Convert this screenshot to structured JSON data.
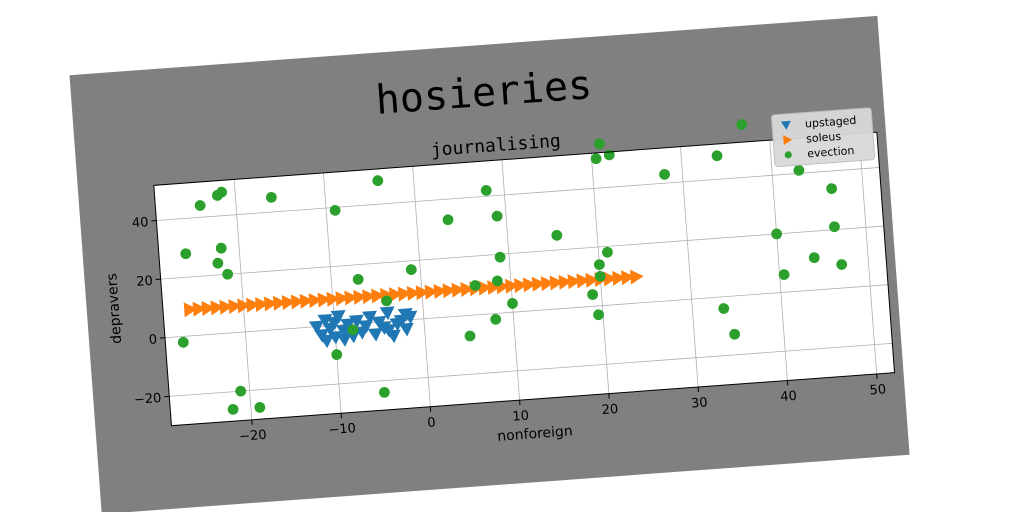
{
  "chart_data": {
    "type": "scatter",
    "suptitle": "hosieries",
    "title": "journalising",
    "xlabel": "nonforeign",
    "ylabel": "depravers",
    "xlim": [
      -29,
      52
    ],
    "ylim": [
      -30,
      52
    ],
    "x_ticks": [
      -20,
      -10,
      0,
      10,
      20,
      30,
      40,
      50
    ],
    "y_ticks": [
      -20,
      0,
      20,
      40
    ],
    "x_tick_labels": [
      "−20",
      "−10",
      "0",
      "10",
      "20",
      "30",
      "40",
      "50"
    ],
    "y_tick_labels": [
      "−20",
      "0",
      "20",
      "40"
    ],
    "grid": true,
    "legend_position": "top-right",
    "series": [
      {
        "name": "upstaged",
        "marker": "triangle-down",
        "color": "#1f77b4",
        "points": [
          [
            -12,
            0
          ],
          [
            -11.5,
            -3
          ],
          [
            -11,
            -5
          ],
          [
            -10.5,
            -1
          ],
          [
            -10,
            1
          ],
          [
            -10,
            -4
          ],
          [
            -9.5,
            3
          ],
          [
            -9,
            -2
          ],
          [
            -8.5,
            0
          ],
          [
            -8,
            -4
          ],
          [
            -7.5,
            1
          ],
          [
            -7,
            -3
          ],
          [
            -6.5,
            -1
          ],
          [
            -6,
            2
          ],
          [
            -5.5,
            -4
          ],
          [
            -5,
            0
          ],
          [
            -4.5,
            -2
          ],
          [
            -4,
            3
          ],
          [
            -3.5,
            -5
          ],
          [
            -3,
            -1
          ],
          [
            -2.5,
            0
          ],
          [
            -2,
            -3
          ],
          [
            -1.5,
            1
          ],
          [
            -11,
            2
          ],
          [
            -9,
            -5
          ],
          [
            -4,
            -3
          ],
          [
            -2,
            2
          ]
        ]
      },
      {
        "name": "soleus",
        "marker": "triangle-right",
        "color": "#ff7f0e",
        "points": [
          [
            -26,
            9
          ],
          [
            -25,
            9
          ],
          [
            -24,
            9
          ],
          [
            -23,
            9
          ],
          [
            -22,
            9
          ],
          [
            -21,
            9
          ],
          [
            -20,
            9
          ],
          [
            -19,
            9
          ],
          [
            -18,
            9
          ],
          [
            -17,
            9
          ],
          [
            -16,
            9
          ],
          [
            -15,
            9
          ],
          [
            -14,
            9
          ],
          [
            -13,
            9
          ],
          [
            -12,
            9
          ],
          [
            -11,
            9
          ],
          [
            -10,
            9
          ],
          [
            -9,
            9
          ],
          [
            -8,
            9
          ],
          [
            -7,
            9
          ],
          [
            -6,
            9
          ],
          [
            -5,
            9
          ],
          [
            -4,
            9
          ],
          [
            -3,
            9
          ],
          [
            -2,
            9
          ],
          [
            -1,
            9
          ],
          [
            0,
            9
          ],
          [
            1,
            9
          ],
          [
            2,
            9
          ],
          [
            3,
            9
          ],
          [
            4,
            9
          ],
          [
            5,
            9
          ],
          [
            6,
            9
          ],
          [
            7,
            9
          ],
          [
            8,
            9
          ],
          [
            9,
            9
          ],
          [
            10,
            9
          ],
          [
            11,
            9
          ],
          [
            12,
            9
          ],
          [
            13,
            9
          ],
          [
            14,
            9
          ],
          [
            15,
            9
          ],
          [
            16,
            9
          ],
          [
            17,
            9
          ],
          [
            18,
            9
          ],
          [
            19,
            9
          ],
          [
            20,
            9
          ],
          [
            21,
            9
          ],
          [
            22,
            9
          ],
          [
            23,
            9
          ],
          [
            24,
            9
          ]
        ]
      },
      {
        "name": "evection",
        "marker": "circle",
        "color": "#2ca02c",
        "points": [
          [
            -26,
            28
          ],
          [
            -27,
            -2
          ],
          [
            -24,
            44
          ],
          [
            -22,
            47
          ],
          [
            -21.5,
            48
          ],
          [
            -22,
            29
          ],
          [
            -22.5,
            24
          ],
          [
            -21.5,
            20
          ],
          [
            -16,
            45
          ],
          [
            -9,
            39
          ],
          [
            -4,
            48
          ],
          [
            -21,
            -20
          ],
          [
            -22,
            -26
          ],
          [
            -19,
            -26
          ],
          [
            -5,
            -24
          ],
          [
            -1,
            17
          ],
          [
            -7,
            15
          ],
          [
            -10,
            -10
          ],
          [
            -8,
            -2
          ],
          [
            -4,
            7
          ],
          [
            3.5,
            33
          ],
          [
            8,
            42
          ],
          [
            9,
            33
          ],
          [
            9,
            19
          ],
          [
            10,
            3
          ],
          [
            8,
            -2
          ],
          [
            6,
            10
          ],
          [
            8.5,
            11
          ],
          [
            5,
            -7
          ],
          [
            15.5,
            25
          ],
          [
            20,
            14
          ],
          [
            21,
            18
          ],
          [
            19,
            4
          ],
          [
            19.5,
            -3
          ],
          [
            20,
            10
          ],
          [
            20.5,
            50
          ],
          [
            21,
            55
          ],
          [
            22,
            51
          ],
          [
            28,
            43
          ],
          [
            34,
            48
          ],
          [
            37,
            58
          ],
          [
            33.5,
            -4
          ],
          [
            34.5,
            -13
          ],
          [
            40,
            20
          ],
          [
            40.5,
            6
          ],
          [
            43,
            41
          ],
          [
            44,
            11
          ],
          [
            46.5,
            34
          ],
          [
            46.5,
            21
          ],
          [
            47,
            8
          ]
        ]
      }
    ]
  }
}
